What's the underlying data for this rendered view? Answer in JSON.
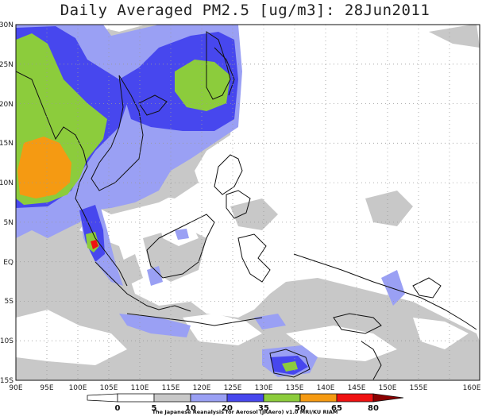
{
  "title": "Daily Averaged PM2.5 [ug/m3]: 28Jun2011",
  "axes": {
    "lat_labels": [
      "30N",
      "25N",
      "20N",
      "15N",
      "10N",
      "5N",
      "EQ",
      "5S",
      "10S",
      "15S"
    ],
    "lon_labels": [
      "90E",
      "95E",
      "100E",
      "105E",
      "110E",
      "115E",
      "120E",
      "125E",
      "130E",
      "135E",
      "140E",
      "145E",
      "150E",
      "155E",
      "160E"
    ]
  },
  "colorbar": {
    "labels": [
      "0",
      "5",
      "10",
      "20",
      "35",
      "50",
      "65",
      "80"
    ],
    "colors": [
      "#ffffff",
      "#c8c8c8",
      "#9aa0f4",
      "#4747ee",
      "#8ccc3c",
      "#f59a12",
      "#ef1111",
      "#8a0000"
    ]
  },
  "credit": "The Japanese Reanalysis for Aerosol (JRAero) v1.0 MRI/KU RIAM"
}
